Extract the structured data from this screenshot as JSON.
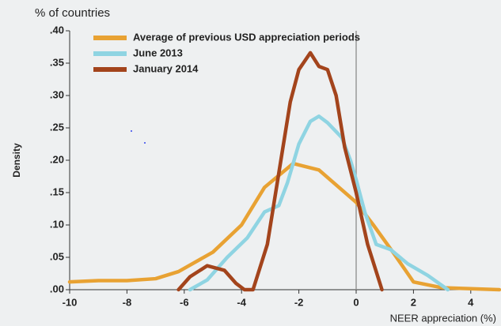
{
  "chart_data": {
    "type": "line",
    "title": "% of countries",
    "ylabel": "Density",
    "xlabel": "NEER appreciation (%)",
    "xlim": [
      -10,
      5
    ],
    "ylim": [
      0,
      0.4
    ],
    "xticks": [
      -10,
      -8,
      -6,
      -4,
      -2,
      0,
      2,
      4
    ],
    "yticks": [
      {
        "value": 0,
        "label": ".00"
      },
      {
        "value": 0.05,
        "label": ".05"
      },
      {
        "value": 0.1,
        "label": ".10"
      },
      {
        "value": 0.15,
        "label": ".15"
      },
      {
        "value": 0.2,
        "label": ".20"
      },
      {
        "value": 0.25,
        "label": ".25"
      },
      {
        "value": 0.3,
        "label": ".30"
      },
      {
        "value": 0.35,
        "label": ".35"
      },
      {
        "value": 0.4,
        "label": ".40"
      }
    ],
    "legend": "top-left",
    "series": [
      {
        "name": "Average of previous USD appreciation periods",
        "color": "#e8a233",
        "x": [
          -10,
          -9,
          -8,
          -7,
          -6.2,
          -5,
          -4,
          -3.2,
          -2.2,
          -1.3,
          0,
          0.6,
          1.3,
          2,
          3,
          5
        ],
        "values": [
          0.012,
          0.014,
          0.014,
          0.017,
          0.028,
          0.058,
          0.1,
          0.158,
          0.195,
          0.185,
          0.135,
          0.1,
          0.057,
          0.012,
          0.003,
          0
        ]
      },
      {
        "name": "June 2013",
        "color": "#8fd4e2",
        "x": [
          -5.8,
          -5.2,
          -4.5,
          -3.8,
          -3.2,
          -2.7,
          -2.4,
          -2,
          -1.6,
          -1.3,
          -1,
          -0.5,
          -0.2,
          0,
          0.3,
          0.7,
          1.2,
          1.8,
          2.5,
          3.2
        ],
        "values": [
          0,
          0.015,
          0.05,
          0.08,
          0.12,
          0.13,
          0.165,
          0.225,
          0.26,
          0.268,
          0.258,
          0.235,
          0.2,
          0.17,
          0.12,
          0.07,
          0.062,
          0.04,
          0.022,
          0
        ]
      },
      {
        "name": "January 2014",
        "color": "#a3441c",
        "x": [
          -6.2,
          -5.8,
          -5.2,
          -4.6,
          -4.2,
          -3.9,
          -3.6,
          -3.1,
          -2.7,
          -2.3,
          -2,
          -1.6,
          -1.3,
          -1,
          -0.7,
          -0.4,
          0,
          0.4,
          0.9
        ],
        "values": [
          0,
          0.02,
          0.037,
          0.03,
          0.01,
          0,
          0,
          0.07,
          0.18,
          0.29,
          0.34,
          0.366,
          0.345,
          0.34,
          0.3,
          0.22,
          0.15,
          0.07,
          0
        ]
      }
    ]
  }
}
